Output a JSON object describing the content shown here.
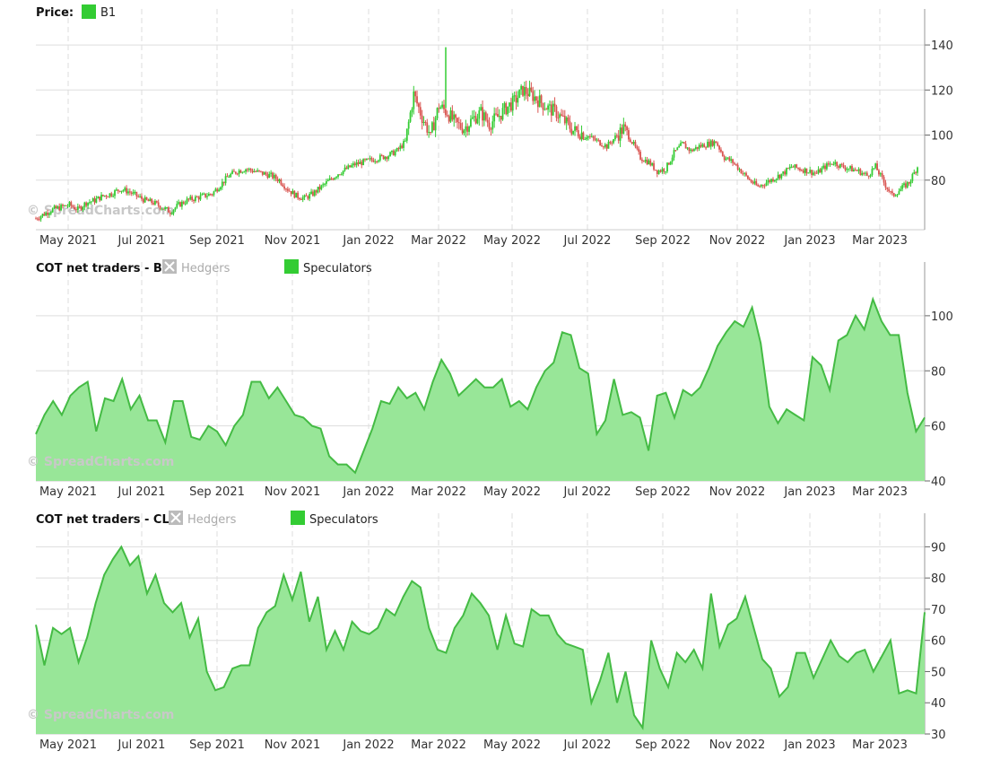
{
  "colors": {
    "up": "#33cc33",
    "down": "#d9534f",
    "area_fill": "#98e698",
    "area_line": "#44bb44",
    "grid": "#dddddd",
    "hedgers_box": "#bbbbbb"
  },
  "watermark": "© SpreadCharts.com",
  "x_ticks": [
    "May 2021",
    "Jul 2021",
    "Sep 2021",
    "Nov 2021",
    "Jan 2022",
    "Mar 2022",
    "May 2022",
    "Jul 2022",
    "Sep 2022",
    "Nov 2022",
    "Jan 2023",
    "Mar 2023"
  ],
  "chart_data": [
    {
      "type": "candlestick",
      "legend_title": "Price:",
      "series_name": "B1",
      "x_range": [
        "2021-04-01",
        "2023-04-12"
      ],
      "ylim": [
        58,
        148
      ],
      "y_ticks": [
        80,
        100,
        120,
        140
      ],
      "grid": true,
      "closes_weekly": [
        63,
        65,
        67,
        68,
        69,
        67,
        70,
        71,
        73,
        74,
        76,
        75,
        73,
        71,
        70,
        68,
        66,
        69,
        71,
        72,
        73,
        74,
        78,
        82,
        84,
        85,
        84,
        83,
        82,
        80,
        76,
        73,
        72,
        74,
        77,
        80,
        83,
        85,
        87,
        88,
        89,
        90,
        91,
        93,
        97,
        118,
        108,
        100,
        113,
        110,
        105,
        103,
        107,
        110,
        105,
        108,
        112,
        115,
        120,
        118,
        115,
        112,
        110,
        106,
        102,
        101,
        99,
        97,
        95,
        99,
        103,
        97,
        90,
        88,
        84,
        85,
        92,
        96,
        93,
        95,
        96,
        97,
        90,
        88,
        84,
        80,
        77,
        79,
        81,
        83,
        86,
        85,
        84,
        83,
        86,
        88,
        86,
        85,
        84,
        82,
        86,
        79,
        73,
        76,
        79,
        86
      ]
    },
    {
      "type": "area",
      "legend_title": "COT net traders - B:",
      "series": [
        {
          "name": "Hedgers",
          "visible": false
        },
        {
          "name": "Speculators",
          "visible": true
        }
      ],
      "ylim": [
        40,
        113
      ],
      "y_ticks": [
        40,
        60,
        80,
        100
      ],
      "grid": true,
      "x_range": [
        "2021-04-01",
        "2023-04-12"
      ],
      "speculators_weekly": [
        57,
        64,
        69,
        64,
        71,
        74,
        76,
        58,
        70,
        69,
        77,
        66,
        71,
        62,
        62,
        54,
        69,
        69,
        56,
        55,
        60,
        58,
        53,
        60,
        64,
        76,
        76,
        70,
        74,
        69,
        64,
        63,
        60,
        59,
        49,
        46,
        46,
        43,
        51,
        59,
        69,
        68,
        74,
        70,
        72,
        66,
        76,
        84,
        79,
        71,
        74,
        77,
        74,
        74,
        77,
        67,
        69,
        66,
        74,
        80,
        83,
        94,
        93,
        81,
        79,
        57,
        62,
        77,
        64,
        65,
        63,
        51,
        71,
        72,
        63,
        73,
        71,
        74,
        81,
        89,
        94,
        98,
        96,
        103,
        90,
        67,
        61,
        66,
        64,
        62,
        85,
        82,
        73,
        91,
        93,
        100,
        95,
        106,
        98,
        93,
        93,
        72,
        58,
        63
      ]
    },
    {
      "type": "area",
      "legend_title": "COT net traders - CL:",
      "series": [
        {
          "name": "Hedgers",
          "visible": false
        },
        {
          "name": "Speculators",
          "visible": true
        }
      ],
      "ylim": [
        30,
        95
      ],
      "y_ticks": [
        30,
        40,
        50,
        60,
        70,
        80,
        90
      ],
      "grid": true,
      "x_range": [
        "2021-04-01",
        "2023-04-12"
      ],
      "speculators_weekly": [
        65,
        52,
        64,
        62,
        64,
        53,
        61,
        72,
        81,
        86,
        90,
        84,
        87,
        75,
        81,
        72,
        69,
        72,
        61,
        67,
        50,
        44,
        45,
        51,
        52,
        52,
        64,
        69,
        71,
        81,
        73,
        82,
        66,
        74,
        57,
        63,
        57,
        66,
        63,
        62,
        64,
        70,
        68,
        74,
        79,
        77,
        64,
        57,
        56,
        64,
        68,
        75,
        72,
        68,
        57,
        68,
        59,
        58,
        70,
        68,
        68,
        62,
        59,
        58,
        57,
        40,
        47,
        56,
        40,
        50,
        36,
        32,
        60,
        51,
        45,
        56,
        53,
        57,
        51,
        75,
        58,
        65,
        67,
        74,
        64,
        54,
        51,
        42,
        45,
        56,
        56,
        48,
        54,
        60,
        55,
        53,
        56,
        57,
        50,
        55,
        60,
        43,
        44,
        43,
        69
      ]
    }
  ]
}
